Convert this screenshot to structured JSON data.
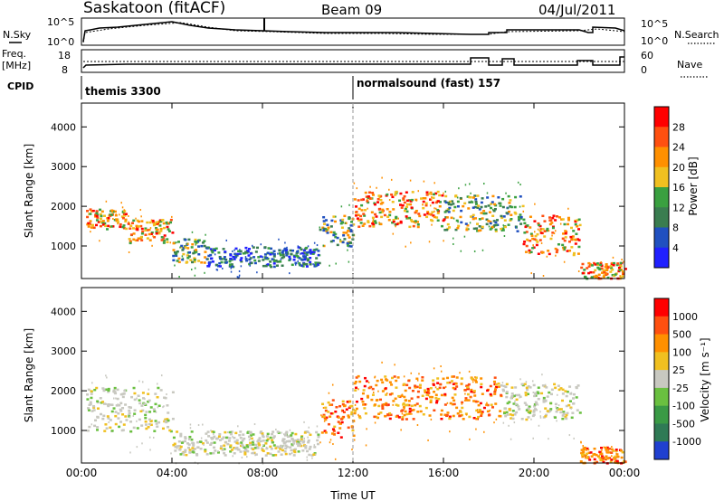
{
  "header": {
    "station": "Saskatoon (fitACF)",
    "beam": "Beam 09",
    "date": "04/Jul/2011"
  },
  "noise_panel": {
    "left_label": "N.Sky",
    "left_ticks": [
      "10^5",
      "10^0"
    ],
    "right_label": "N.Search",
    "right_ticks": [
      "10^5",
      "10^0"
    ]
  },
  "freq_panel": {
    "left_label_1": "Freq.",
    "left_label_2": "[MHz]",
    "left_ticks": [
      "18",
      "8"
    ],
    "right_label": "Nave",
    "right_ticks": [
      "60",
      "0"
    ]
  },
  "cpid": {
    "label": "CPID",
    "entries": [
      "themis 3300",
      "normalsound (fast) 157"
    ]
  },
  "chart_data": [
    {
      "type": "heatmap",
      "name": "power",
      "ylabel": "Slant Range [km]",
      "y_ticks": [
        1000,
        2000,
        3000,
        4000
      ],
      "ylim": [
        180,
        4600
      ],
      "x_ticks": [
        "00:00",
        "04:00",
        "08:00",
        "12:00",
        "16:00",
        "20:00",
        "00:00"
      ],
      "xlim_hours": [
        0,
        24
      ],
      "colorbar": {
        "label": "Power [dB]",
        "ticks": [
          "28",
          "24",
          "20",
          "16",
          "12",
          "8",
          "4"
        ],
        "colors": [
          "#2020ff",
          "#2050c0",
          "#3a7d50",
          "#3aa040",
          "#f0c020",
          "#ff9000",
          "#ff5010",
          "#ff0000"
        ]
      },
      "bands": [
        {
          "t0": 0.2,
          "t1": 2.0,
          "r0": 1450,
          "r1": 1950,
          "level": "high"
        },
        {
          "t0": 2.0,
          "t1": 4.0,
          "r0": 1100,
          "r1": 1700,
          "level": "high"
        },
        {
          "t0": 4.0,
          "t1": 5.5,
          "r0": 600,
          "r1": 1200,
          "level": "mid"
        },
        {
          "t0": 5.5,
          "t1": 10.5,
          "r0": 500,
          "r1": 1000,
          "level": "low"
        },
        {
          "t0": 10.5,
          "t1": 12.0,
          "r0": 1000,
          "r1": 1800,
          "level": "mid"
        },
        {
          "t0": 12.0,
          "t1": 16.0,
          "r0": 1500,
          "r1": 2400,
          "level": "high"
        },
        {
          "t0": 16.0,
          "t1": 19.5,
          "r0": 1400,
          "r1": 2300,
          "level": "mid"
        },
        {
          "t0": 19.5,
          "t1": 22.0,
          "r0": 800,
          "r1": 1800,
          "level": "high"
        },
        {
          "t0": 22.0,
          "t1": 24.0,
          "r0": 200,
          "r1": 600,
          "level": "high"
        }
      ]
    },
    {
      "type": "heatmap",
      "name": "velocity",
      "ylabel": "Slant Range [km]",
      "y_ticks": [
        1000,
        2000,
        3000,
        4000
      ],
      "ylim": [
        180,
        4600
      ],
      "x_ticks": [
        "00:00",
        "04:00",
        "08:00",
        "12:00",
        "16:00",
        "20:00",
        "00:00"
      ],
      "xlim_hours": [
        0,
        24
      ],
      "xlabel": "Time UT",
      "colorbar": {
        "label": "Velocity [m s⁻¹]",
        "ticks": [
          "1000",
          "500",
          "100",
          "25",
          "-25",
          "-100",
          "-500",
          "-1000"
        ],
        "colors": [
          "#2040d0",
          "#2f7a55",
          "#3a9a45",
          "#6ac040",
          "#c8c8c0",
          "#f0c020",
          "#ff9000",
          "#ff5010",
          "#ff0000"
        ]
      },
      "bands": [
        {
          "t0": 0.2,
          "t1": 4.0,
          "r0": 1000,
          "r1": 2100,
          "level": "grey"
        },
        {
          "t0": 4.0,
          "t1": 10.5,
          "r0": 400,
          "r1": 1000,
          "level": "grey"
        },
        {
          "t0": 10.5,
          "t1": 12.0,
          "r0": 800,
          "r1": 1800,
          "level": "orange"
        },
        {
          "t0": 12.0,
          "t1": 18.5,
          "r0": 1300,
          "r1": 2400,
          "level": "orange"
        },
        {
          "t0": 18.5,
          "t1": 22.0,
          "r0": 1300,
          "r1": 2200,
          "level": "grey"
        },
        {
          "t0": 22.0,
          "t1": 24.0,
          "r0": 200,
          "r1": 600,
          "level": "orange"
        }
      ]
    }
  ]
}
